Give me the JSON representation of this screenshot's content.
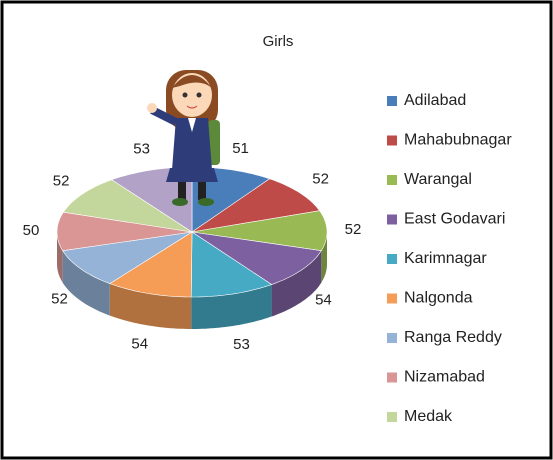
{
  "chart_data": {
    "type": "pie3d",
    "title": "Girls",
    "categories": [
      "Adilabad",
      "Mahabubnagar",
      "Warangal",
      "East Godavari",
      "Karimnagar",
      "Nalgonda",
      "Ranga Reddy",
      "Nizamabad",
      "Medak",
      null
    ],
    "values": [
      51,
      52,
      52,
      54,
      53,
      54,
      52,
      50,
      52,
      53
    ],
    "colors": [
      "#4a7ebb",
      "#be4b48",
      "#98b954",
      "#7d60a0",
      "#46aac5",
      "#f59d56",
      "#95b3d7",
      "#d99694",
      "#c3d69b",
      "#b3a2c7"
    ],
    "legend": "right"
  }
}
